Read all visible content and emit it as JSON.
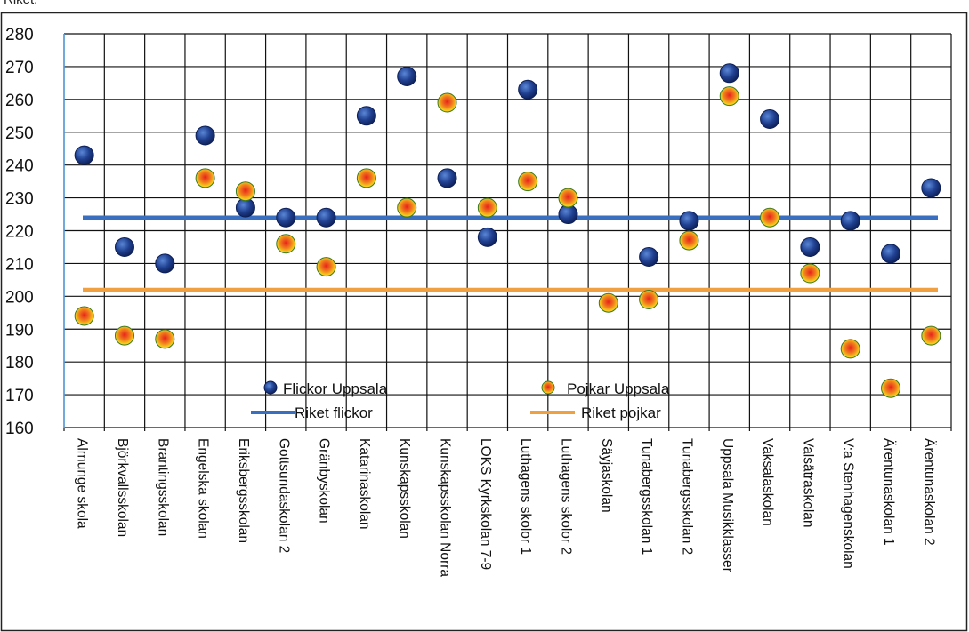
{
  "header_fragment": "Riket.",
  "chart_data": {
    "type": "scatter",
    "title": "",
    "xlabel": "",
    "ylabel": "",
    "ylim": [
      160,
      280
    ],
    "yticks": [
      160,
      170,
      180,
      190,
      200,
      210,
      220,
      230,
      240,
      250,
      260,
      270,
      280
    ],
    "grid": true,
    "legend_placement": "lower-center (inside plot)",
    "categories": [
      "Almunge skola",
      "Björkvallsskolan",
      "Brantingsskolan",
      "Engelska skolan",
      "Eriksbergsskolan",
      "Gottsundaskolan 2",
      "Gränbyskolan",
      "Katarinaskolan",
      "Kunskapsskolan",
      "Kunskapsskolan Norra",
      "LOKS Kyrkskolan 7-9",
      "Luthagens skolor 1",
      "Luthagens skolor 2",
      "Säyjaskolan",
      "Tunabergsskolan 1",
      "Tunabergsskolan 2",
      "Uppsala Musikklasser",
      "Vaksalaskolan",
      "Valsätraskolan",
      "V:a Stenhagenskolan",
      "Ärentunaskolan 1",
      "Ärentunaskolan 2"
    ],
    "series": [
      {
        "name": "Flickor Uppsala",
        "kind": "points",
        "color": "#1f3f8f",
        "values": [
          243,
          215,
          210,
          249,
          227,
          224,
          224,
          255,
          267,
          236,
          218,
          263,
          225,
          null,
          212,
          223,
          268,
          254,
          215,
          223,
          213,
          233
        ]
      },
      {
        "name": "Pojkar Uppsala",
        "kind": "points",
        "color": "#f0a020",
        "values": [
          194,
          188,
          187,
          236,
          232,
          216,
          209,
          236,
          227,
          259,
          227,
          235,
          230,
          198,
          199,
          217,
          261,
          224,
          207,
          184,
          172,
          188
        ]
      },
      {
        "name": "Riket flickor",
        "kind": "line",
        "color": "#3a6fbf",
        "value": 224
      },
      {
        "name": "Riket pojkar",
        "kind": "line",
        "color": "#f0a040",
        "value": 202
      }
    ]
  }
}
